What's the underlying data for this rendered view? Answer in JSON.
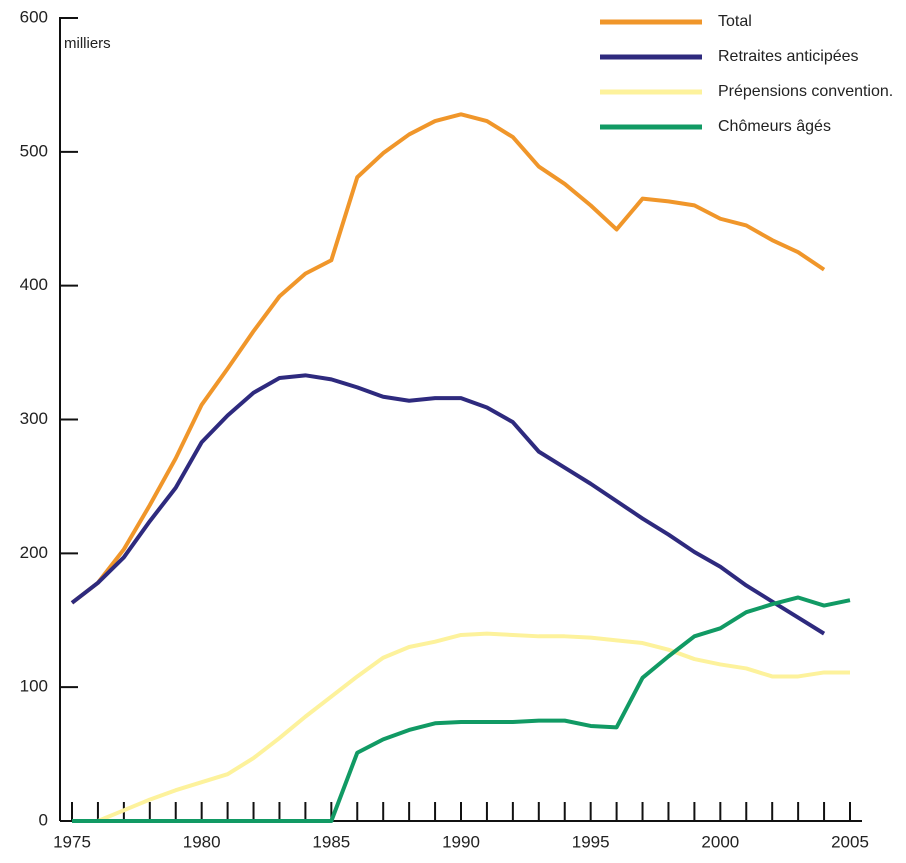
{
  "chart_data": {
    "type": "line",
    "y_label": "milliers",
    "x": [
      1975,
      1976,
      1977,
      1978,
      1979,
      1980,
      1981,
      1982,
      1983,
      1984,
      1985,
      1986,
      1987,
      1988,
      1989,
      1990,
      1991,
      1992,
      1993,
      1994,
      1995,
      1996,
      1997,
      1998,
      1999,
      2000,
      2001,
      2002,
      2003,
      2004,
      2005
    ],
    "series": [
      {
        "name": "Total",
        "color": "#f0962a",
        "values": [
          163,
          178,
          203,
          236,
          271,
          311,
          338,
          366,
          392,
          409,
          419,
          481,
          499,
          513,
          523,
          528,
          523,
          511,
          489,
          476,
          460,
          442,
          465,
          463,
          460,
          450,
          445,
          434,
          425,
          412,
          null
        ]
      },
      {
        "name": "Retraites anticipées",
        "color": "#2e2a7e",
        "values": [
          163,
          178,
          197,
          224,
          249,
          283,
          303,
          320,
          331,
          333,
          330,
          324,
          317,
          314,
          316,
          316,
          309,
          298,
          276,
          264,
          252,
          239,
          226,
          214,
          201,
          190,
          176,
          164,
          152,
          140,
          null
        ]
      },
      {
        "name": "Prépensions convention.",
        "color": "#fdf29c",
        "values": [
          null,
          0,
          8,
          16,
          23,
          29,
          35,
          47,
          62,
          78,
          93,
          108,
          122,
          130,
          134,
          139,
          140,
          139,
          138,
          138,
          137,
          135,
          133,
          128,
          121,
          117,
          114,
          108,
          108,
          111,
          111
        ]
      },
      {
        "name": "Chômeurs âgés",
        "color": "#119a64",
        "values": [
          0,
          0,
          0,
          0,
          0,
          0,
          0,
          0,
          0,
          0,
          0,
          51,
          61,
          68,
          73,
          74,
          74,
          74,
          75,
          75,
          71,
          70,
          107,
          123,
          138,
          144,
          156,
          162,
          167,
          161,
          165
        ]
      }
    ],
    "xlim": [
      1975,
      2005
    ],
    "xticks": [
      1975,
      1980,
      1985,
      1990,
      1995,
      2000,
      2005
    ],
    "ylim": [
      0,
      600
    ],
    "yticks": [
      0,
      100,
      200,
      300,
      400,
      500,
      600
    ],
    "legend": "top-right"
  }
}
